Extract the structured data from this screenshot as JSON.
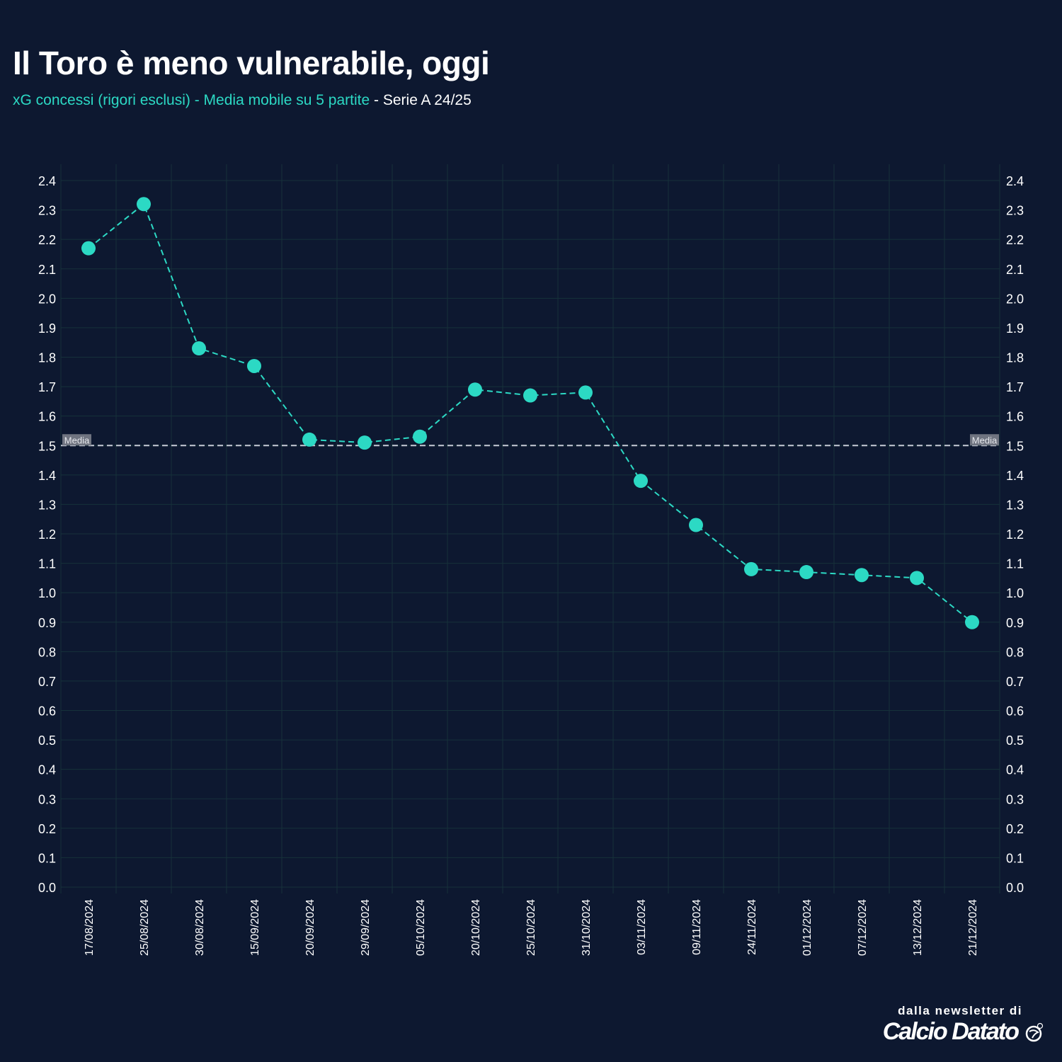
{
  "title": "Il Toro è meno vulnerabile, oggi",
  "subtitle": {
    "part1": "xG concessi (rigori esclusi) - Media mobile su 5 partite",
    "part2": " - Serie A 24/25"
  },
  "branding": {
    "pre": "dalla newsletter di",
    "name": "Calcio Datato"
  },
  "colors": {
    "background": "#0d1830",
    "series": "#2cd9c4",
    "reference": "#c7ccd6",
    "grid": "#16313a",
    "text": "#ffffff"
  },
  "chart_data": {
    "type": "line",
    "title": "Il Toro è meno vulnerabile, oggi",
    "xlabel": "",
    "ylabel": "",
    "ylim": [
      0,
      2.4
    ],
    "y_ticks": [
      "0.0",
      "0.1",
      "0.2",
      "0.3",
      "0.4",
      "0.5",
      "0.6",
      "0.7",
      "0.8",
      "0.9",
      "1.0",
      "1.1",
      "1.2",
      "1.3",
      "1.4",
      "1.5",
      "1.6",
      "1.7",
      "1.8",
      "1.9",
      "2.0",
      "2.1",
      "2.2",
      "2.3",
      "2.4"
    ],
    "y_axes": "left-and-right",
    "grid": true,
    "categories": [
      "17/08/2024",
      "25/08/2024",
      "30/08/2024",
      "15/09/2024",
      "20/09/2024",
      "29/09/2024",
      "05/10/2024",
      "20/10/2024",
      "25/10/2024",
      "31/10/2024",
      "03/11/2024",
      "09/11/2024",
      "24/11/2024",
      "01/12/2024",
      "07/12/2024",
      "13/12/2024",
      "21/12/2024"
    ],
    "series": [
      {
        "values": [
          2.17,
          2.32,
          1.83,
          1.77,
          1.52,
          1.51,
          1.53,
          1.69,
          1.67,
          1.68,
          1.38,
          1.23,
          1.08,
          1.07,
          1.06,
          1.05,
          0.9
        ],
        "line_style": "dashed",
        "markers": "circle"
      }
    ],
    "reference_line": {
      "label": "Media",
      "value": 1.5,
      "line_style": "dashed"
    }
  }
}
